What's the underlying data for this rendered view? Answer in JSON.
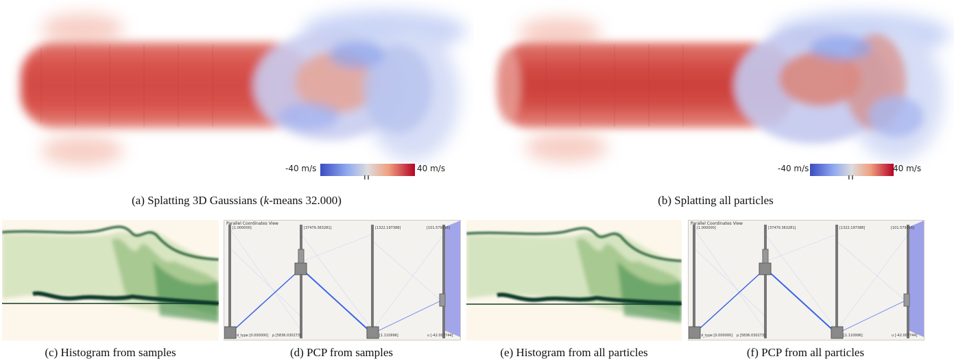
{
  "captions": {
    "a": "(a) Splatting 3D Gaussians (k-means 32.000)",
    "a_prefix": "(a) Splatting 3D Gaussians (",
    "a_italic": "k",
    "a_suffix": "-means 32.000)",
    "b": "(b) Splatting all particles",
    "c": "(c) Histogram from samples",
    "d": "(d) PCP from samples",
    "e": "(e) Histogram from all particles",
    "f": "(f) PCP from all particles"
  },
  "colorbar_a": {
    "min_label": "-40 m/s",
    "max_label": "40 m/s",
    "axis_label": "u"
  },
  "colorbar_b": {
    "min_label": "-40 m/s",
    "max_label": "40 m/s",
    "axis_label": "u"
  },
  "pcp_d": {
    "title": "Parallel Coordinates View",
    "top_ticks": [
      "[1.000000]",
      "[37479.363281]",
      "[1322.197388]",
      "[101.579216]"
    ],
    "bottom_ticks": [
      "d_type [0.000000]",
      "p [5836.030273]",
      "[1.110996]",
      "u [-42.007744]"
    ]
  },
  "pcp_f": {
    "title": "Parallel Coordinates View",
    "top_ticks": [
      "[1.000000]",
      "[37479.363281]",
      "[1322.197388]",
      "[101.579216]"
    ],
    "bottom_ticks": [
      "d_type [0.000000]",
      "p [5836.030273]",
      "[1.110996]",
      "u [-42.007744]"
    ]
  },
  "colors": {
    "diverging_low": "#3b4cc0",
    "diverging_high": "#b40426",
    "histogram_dark": "#0f3b2a",
    "histogram_green": "#2f7a3a",
    "pcp_line": "#3a63e6"
  }
}
